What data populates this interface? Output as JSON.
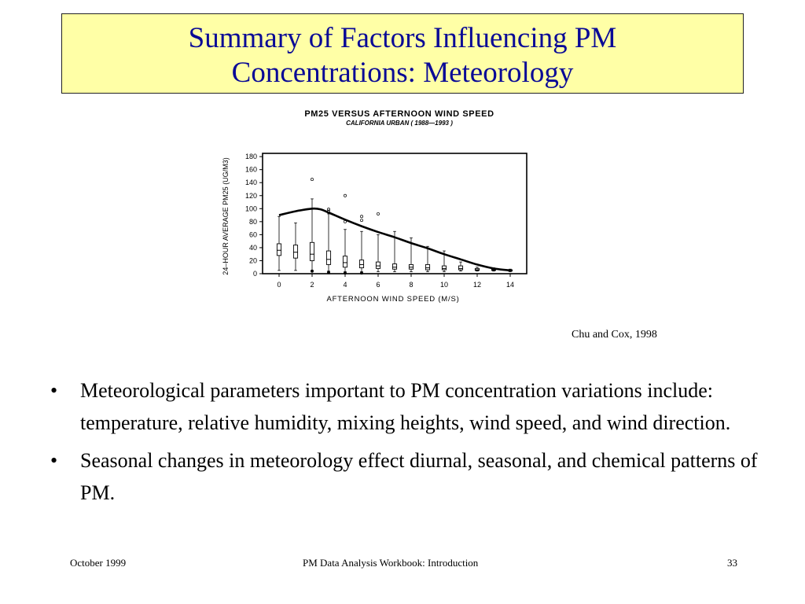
{
  "slide": {
    "title_line1": "Summary of Factors Influencing PM",
    "title_line2": "Concentrations: Meteorology",
    "caption": "Chu and Cox, 1998",
    "bullets": [
      "Meteorological parameters important to PM concentration variations include:  temperature, relative humidity, mixing heights, wind speed, and wind direction.",
      "Seasonal changes in meteorology effect diurnal, seasonal, and chemical patterns of PM."
    ],
    "bullet_symbol": "•",
    "footer_left": "October 1999",
    "footer_center": "PM Data Analysis Workbook: Introduction",
    "footer_right": "33",
    "colors": {
      "title_bg": "#ffffa6",
      "title_text": "#0a0a96"
    }
  },
  "chart_data": {
    "type": "box",
    "title": "PM25 VERSUS AFTERNOON WIND SPEED",
    "subtitle": "CALIFORNIA URBAN ( 1988—1993 )",
    "xlabel": "AFTERNOON WIND SPEED (M/S)",
    "ylabel": "24–HOUR AVERAGE PM25 (UG/M3)",
    "xlim": [
      -1,
      15
    ],
    "ylim": [
      0,
      185
    ],
    "xticks": [
      0,
      2,
      4,
      6,
      8,
      10,
      12,
      14
    ],
    "yticks": [
      0,
      20,
      40,
      60,
      80,
      100,
      120,
      140,
      160,
      180
    ],
    "boxes": [
      {
        "x": 0,
        "whisker_low": 5,
        "q1": 28,
        "median": 36,
        "q3": 46,
        "whisker_high": 88,
        "outliers": []
      },
      {
        "x": 1,
        "whisker_low": 5,
        "q1": 24,
        "median": 33,
        "q3": 44,
        "whisker_high": 78,
        "outliers": []
      },
      {
        "x": 2,
        "whisker_low": 5,
        "q1": 20,
        "median": 30,
        "q3": 48,
        "whisker_high": 115,
        "outliers": [
          145,
          4
        ]
      },
      {
        "x": 3,
        "whisker_low": 4,
        "q1": 14,
        "median": 22,
        "q3": 35,
        "whisker_high": 92,
        "outliers": [
          96,
          99,
          2
        ]
      },
      {
        "x": 4,
        "whisker_low": 3,
        "q1": 10,
        "median": 17,
        "q3": 27,
        "whisker_high": 68,
        "outliers": [
          120,
          80,
          1
        ]
      },
      {
        "x": 5,
        "whisker_low": 3,
        "q1": 9,
        "median": 14,
        "q3": 21,
        "whisker_high": 65,
        "outliers": [
          88,
          82,
          1
        ]
      },
      {
        "x": 6,
        "whisker_low": 3,
        "q1": 8,
        "median": 12,
        "q3": 18,
        "whisker_high": 60,
        "outliers": [
          92
        ]
      },
      {
        "x": 7,
        "whisker_low": 3,
        "q1": 7,
        "median": 10,
        "q3": 15,
        "whisker_high": 65,
        "outliers": []
      },
      {
        "x": 8,
        "whisker_low": 3,
        "q1": 7,
        "median": 10,
        "q3": 14,
        "whisker_high": 55,
        "outliers": []
      },
      {
        "x": 9,
        "whisker_low": 3,
        "q1": 6,
        "median": 9,
        "q3": 14,
        "whisker_high": 42,
        "outliers": []
      },
      {
        "x": 10,
        "whisker_low": 3,
        "q1": 6,
        "median": 8,
        "q3": 12,
        "whisker_high": 35,
        "outliers": []
      },
      {
        "x": 11,
        "whisker_low": 4,
        "q1": 6,
        "median": 8,
        "q3": 12,
        "whisker_high": 18,
        "outliers": []
      },
      {
        "x": 12,
        "whisker_low": 4,
        "q1": 5,
        "median": 6,
        "q3": 8,
        "whisker_high": 10,
        "outliers": []
      },
      {
        "x": 13,
        "whisker_low": 4,
        "q1": 5,
        "median": 6,
        "q3": 7,
        "whisker_high": 9,
        "outliers": []
      },
      {
        "x": 14,
        "whisker_low": 3,
        "q1": 4,
        "median": 5,
        "q3": 6,
        "whisker_high": 7,
        "outliers": []
      }
    ],
    "trend_line": {
      "x": [
        0,
        1,
        2,
        2.5,
        3,
        4,
        5,
        6,
        7,
        8,
        9,
        10,
        11,
        12,
        13,
        14
      ],
      "y": [
        90,
        96,
        100,
        99,
        94,
        83,
        73,
        64,
        56,
        47,
        39,
        30,
        22,
        14,
        8,
        5
      ]
    },
    "grid": false,
    "legend": "none"
  }
}
